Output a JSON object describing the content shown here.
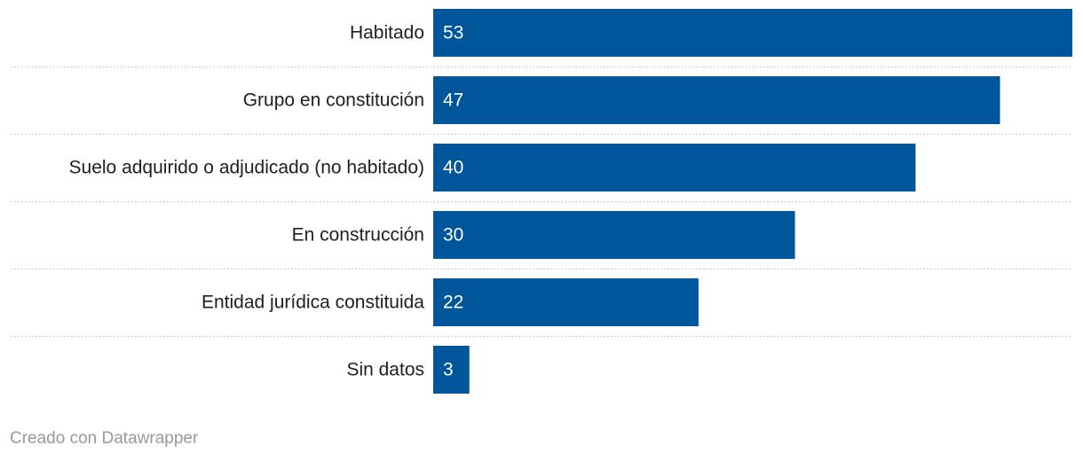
{
  "chart_data": {
    "type": "bar",
    "orientation": "horizontal",
    "categories": [
      "Habitado",
      "Grupo en constitución",
      "Suelo adquirido o adjudicado (no habitado)",
      "En construcción",
      "Entidad jurídica constituida",
      "Sin datos"
    ],
    "values": [
      53,
      47,
      40,
      30,
      22,
      3
    ],
    "title": "",
    "xlabel": "",
    "ylabel": "",
    "xlim": [
      0,
      53
    ],
    "bar_color": "#00569a",
    "grid": false,
    "legend": "none"
  },
  "footer": {
    "credit": "Creado con Datawrapper"
  }
}
